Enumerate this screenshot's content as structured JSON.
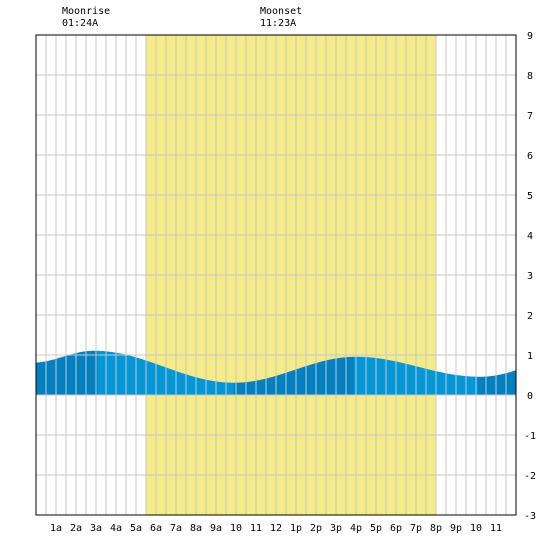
{
  "header": {
    "moonrise_label": "Moonrise",
    "moonrise_time": "01:24A",
    "moonset_label": "Moonset",
    "moonset_time": "11:23A"
  },
  "chart_data": {
    "type": "area",
    "title": "",
    "xlabel": "",
    "ylabel": "",
    "xlim": [
      0,
      24
    ],
    "ylim": [
      -3,
      9
    ],
    "grid": true,
    "x_ticks": [
      {
        "x": 1,
        "label": "1a"
      },
      {
        "x": 2,
        "label": "2a"
      },
      {
        "x": 3,
        "label": "3a"
      },
      {
        "x": 4,
        "label": "4a"
      },
      {
        "x": 5,
        "label": "5a"
      },
      {
        "x": 6,
        "label": "6a"
      },
      {
        "x": 7,
        "label": "7a"
      },
      {
        "x": 8,
        "label": "8a"
      },
      {
        "x": 9,
        "label": "9a"
      },
      {
        "x": 10,
        "label": "10"
      },
      {
        "x": 11,
        "label": "11"
      },
      {
        "x": 12,
        "label": "12"
      },
      {
        "x": 13,
        "label": "1p"
      },
      {
        "x": 14,
        "label": "2p"
      },
      {
        "x": 15,
        "label": "3p"
      },
      {
        "x": 16,
        "label": "4p"
      },
      {
        "x": 17,
        "label": "5p"
      },
      {
        "x": 18,
        "label": "6p"
      },
      {
        "x": 19,
        "label": "7p"
      },
      {
        "x": 20,
        "label": "8p"
      },
      {
        "x": 21,
        "label": "9p"
      },
      {
        "x": 22,
        "label": "10"
      },
      {
        "x": 23,
        "label": "11"
      }
    ],
    "y_ticks": [
      {
        "y": 9,
        "label": "9"
      },
      {
        "y": 8,
        "label": "8"
      },
      {
        "y": 7,
        "label": "7"
      },
      {
        "y": 6,
        "label": "6"
      },
      {
        "y": 5,
        "label": "5"
      },
      {
        "y": 4,
        "label": "4"
      },
      {
        "y": 3,
        "label": "3"
      },
      {
        "y": 2,
        "label": "2"
      },
      {
        "y": 1,
        "label": "1"
      },
      {
        "y": 0,
        "label": "0"
      },
      {
        "y": -1,
        "label": "-1"
      },
      {
        "y": -2,
        "label": "-2"
      },
      {
        "y": -3,
        "label": "-3"
      }
    ],
    "daylight": {
      "start": 5.5,
      "end": 20.0
    },
    "tide_extremes": [
      {
        "x": -0.2,
        "y": 0.8
      },
      {
        "x": 2.9,
        "y": 1.1
      },
      {
        "x": 9.9,
        "y": 0.3
      },
      {
        "x": 16.0,
        "y": 0.95
      },
      {
        "x": 22.2,
        "y": 0.45
      },
      {
        "x": 28.0,
        "y": 1.2
      }
    ],
    "bands": [
      {
        "from": 0.0,
        "to": 3.1,
        "color": "#0080c0"
      },
      {
        "from": 3.1,
        "to": 9.9,
        "color": "#0096d8"
      },
      {
        "from": 9.9,
        "to": 15.9,
        "color": "#0080c0"
      },
      {
        "from": 15.9,
        "to": 22.1,
        "color": "#0096d8"
      },
      {
        "from": 22.1,
        "to": 24.0,
        "color": "#0080c0"
      }
    ],
    "colors": {
      "daylight": "#f5eb88",
      "grid": "#c8c8c8",
      "border": "#000000"
    }
  }
}
